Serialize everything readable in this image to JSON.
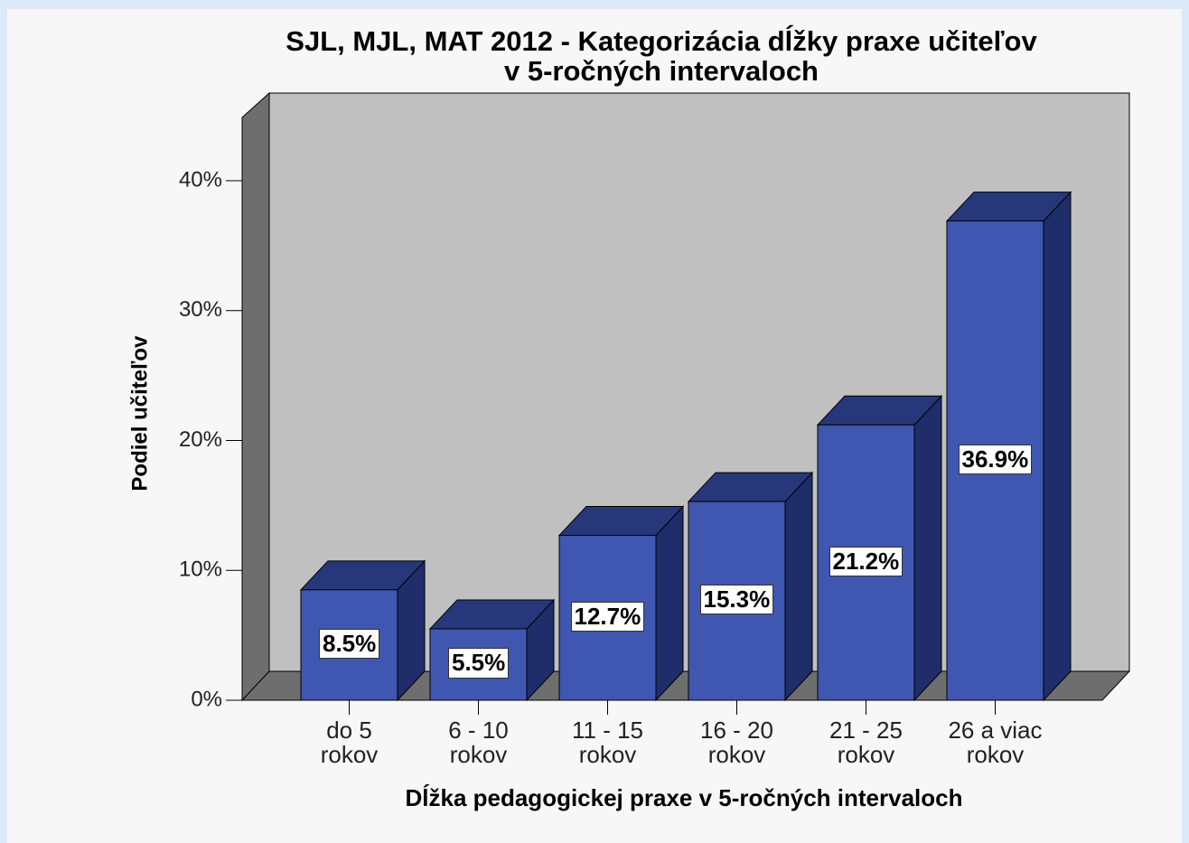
{
  "chart_data": {
    "type": "bar3d",
    "title": "SJL, MJL, MAT 2012 - Kategorizácia dĺžky praxe učiteľov\nv 5-ročných intervaloch",
    "x_label": "Dĺžka pedagogickej praxe v 5-ročných intervaloch",
    "y_label": "Podiel učiteľov",
    "categories": [
      "do 5\nrokov",
      "6 - 10\nrokov",
      "11 - 15\nrokov",
      "16 - 20\nrokov",
      "21 - 25\nrokov",
      "26 a viac\nrokov"
    ],
    "values": [
      8.5,
      5.5,
      12.7,
      15.3,
      21.2,
      36.9
    ],
    "value_labels": [
      "8.5%",
      "5.5%",
      "12.7%",
      "15.3%",
      "21.2%",
      "36.9%"
    ],
    "color": "#3f57b0",
    "ylim": [
      0,
      40
    ],
    "yticks": [
      {
        "value": 0,
        "label": "0%"
      },
      {
        "value": 10,
        "label": "10%"
      },
      {
        "value": 20,
        "label": "20%"
      },
      {
        "value": 30,
        "label": "30%"
      },
      {
        "value": 40,
        "label": "40%"
      }
    ]
  }
}
